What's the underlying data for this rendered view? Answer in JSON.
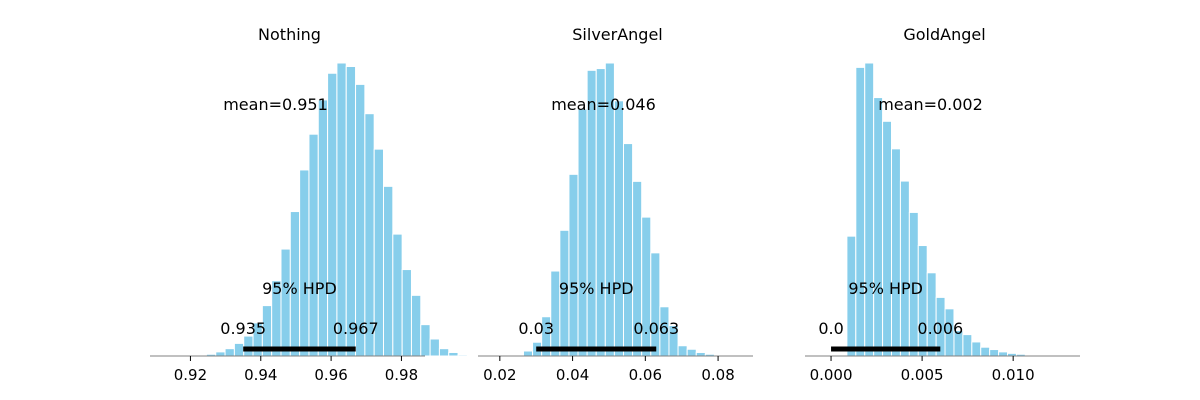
{
  "chart_data": [
    {
      "type": "bar",
      "title": "Nothing",
      "bar_color": "#87ceeb",
      "xlim": [
        0.9085,
        0.9867
      ],
      "ymax": 1.0,
      "bin_start": 0.9219,
      "bin_width": 0.00265,
      "heights": [
        0.002,
        0.006,
        0.014,
        0.025,
        0.043,
        0.068,
        0.113,
        0.172,
        0.257,
        0.365,
        0.493,
        0.635,
        0.757,
        0.874,
        0.965,
        1.0,
        0.988,
        0.927,
        0.827,
        0.706,
        0.579,
        0.416,
        0.295,
        0.207,
        0.107,
        0.058,
        0.025,
        0.012,
        0.004
      ],
      "mean_label": "mean=0.951",
      "hpd": [
        0.935,
        0.967
      ],
      "hpd_low_label": "0.935",
      "hpd_high_label": "0.967",
      "hpd_text": "95% HPD",
      "xticks": [
        0.92,
        0.94,
        0.96,
        0.98
      ],
      "xtick_labels": [
        "0.92",
        "0.94",
        "0.96",
        "0.98"
      ]
    },
    {
      "type": "bar",
      "title": "SilverAngel",
      "bar_color": "#87ceeb",
      "xlim": [
        0.014,
        0.0896
      ],
      "ymax": 1.0,
      "bin_start": 0.0265,
      "bin_width": 0.0025,
      "heights": [
        0.017,
        0.047,
        0.134,
        0.29,
        0.429,
        0.62,
        0.843,
        0.975,
        0.981,
        1.0,
        0.871,
        0.725,
        0.596,
        0.474,
        0.352,
        0.168,
        0.104,
        0.035,
        0.023,
        0.012,
        0.006,
        0.002
      ],
      "mean_label": "mean=0.046",
      "hpd": [
        0.03,
        0.063
      ],
      "hpd_low_label": "0.03",
      "hpd_high_label": "0.063",
      "hpd_text": "95% HPD",
      "xticks": [
        0.02,
        0.04,
        0.06,
        0.08
      ],
      "xtick_labels": [
        "0.02",
        "0.04",
        "0.06",
        "0.08"
      ]
    },
    {
      "type": "bar",
      "title": "GoldAngel",
      "bar_color": "#87ceeb",
      "xlim": [
        -0.00143,
        0.01367
      ],
      "ymax": 1.0,
      "bin_start": 0.00038,
      "bin_width": 0.00049,
      "heights": [
        0.002,
        0.409,
        0.985,
        1.0,
        0.882,
        0.801,
        0.707,
        0.597,
        0.49,
        0.377,
        0.284,
        0.2,
        0.161,
        0.087,
        0.073,
        0.048,
        0.03,
        0.022,
        0.014,
        0.009,
        0.006,
        0.003,
        0.002,
        0.001,
        0.001
      ],
      "mean_label": "mean=0.002",
      "hpd": [
        0.0,
        0.006
      ],
      "hpd_low_label": "0.0",
      "hpd_high_label": "0.006",
      "hpd_text": "95% HPD",
      "xticks": [
        0.0,
        0.005,
        0.01
      ],
      "xtick_labels": [
        "0.000",
        "0.005",
        "0.010"
      ]
    }
  ]
}
